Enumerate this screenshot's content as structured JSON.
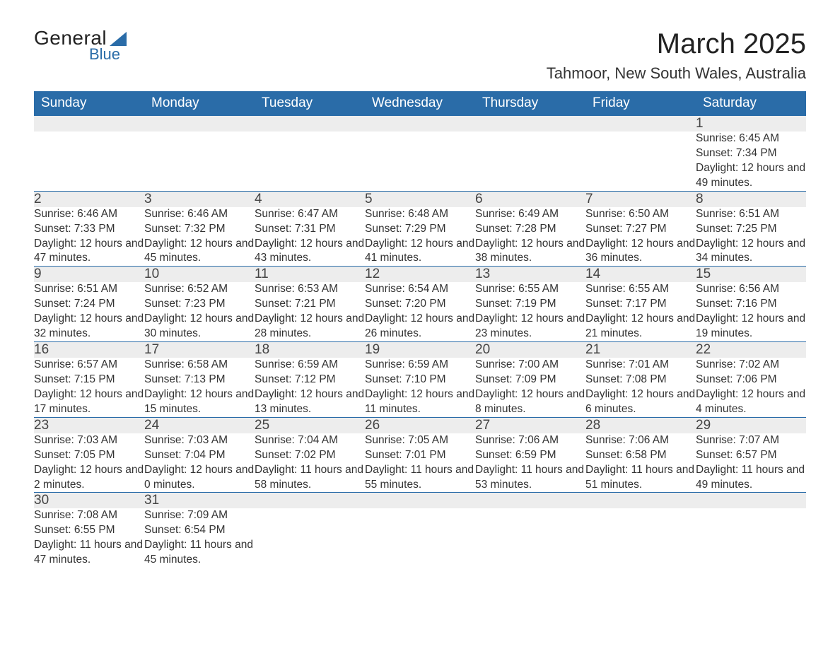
{
  "logo": {
    "text1": "General",
    "text2": "Blue"
  },
  "title": "March 2025",
  "location": "Tahmoor, New South Wales, Australia",
  "columns": [
    "Sunday",
    "Monday",
    "Tuesday",
    "Wednesday",
    "Thursday",
    "Friday",
    "Saturday"
  ],
  "colors": {
    "header_bg": "#2a6ca8",
    "header_text": "#ffffff",
    "daynum_bg": "#ededed",
    "row_border": "#2a6ca8",
    "body_text": "#333333",
    "background": "#ffffff"
  },
  "weeks": [
    [
      null,
      null,
      null,
      null,
      null,
      null,
      {
        "n": "1",
        "sr": "6:45 AM",
        "ss": "7:34 PM",
        "dl": "12 hours and 49 minutes."
      }
    ],
    [
      {
        "n": "2",
        "sr": "6:46 AM",
        "ss": "7:33 PM",
        "dl": "12 hours and 47 minutes."
      },
      {
        "n": "3",
        "sr": "6:46 AM",
        "ss": "7:32 PM",
        "dl": "12 hours and 45 minutes."
      },
      {
        "n": "4",
        "sr": "6:47 AM",
        "ss": "7:31 PM",
        "dl": "12 hours and 43 minutes."
      },
      {
        "n": "5",
        "sr": "6:48 AM",
        "ss": "7:29 PM",
        "dl": "12 hours and 41 minutes."
      },
      {
        "n": "6",
        "sr": "6:49 AM",
        "ss": "7:28 PM",
        "dl": "12 hours and 38 minutes."
      },
      {
        "n": "7",
        "sr": "6:50 AM",
        "ss": "7:27 PM",
        "dl": "12 hours and 36 minutes."
      },
      {
        "n": "8",
        "sr": "6:51 AM",
        "ss": "7:25 PM",
        "dl": "12 hours and 34 minutes."
      }
    ],
    [
      {
        "n": "9",
        "sr": "6:51 AM",
        "ss": "7:24 PM",
        "dl": "12 hours and 32 minutes."
      },
      {
        "n": "10",
        "sr": "6:52 AM",
        "ss": "7:23 PM",
        "dl": "12 hours and 30 minutes."
      },
      {
        "n": "11",
        "sr": "6:53 AM",
        "ss": "7:21 PM",
        "dl": "12 hours and 28 minutes."
      },
      {
        "n": "12",
        "sr": "6:54 AM",
        "ss": "7:20 PM",
        "dl": "12 hours and 26 minutes."
      },
      {
        "n": "13",
        "sr": "6:55 AM",
        "ss": "7:19 PM",
        "dl": "12 hours and 23 minutes."
      },
      {
        "n": "14",
        "sr": "6:55 AM",
        "ss": "7:17 PM",
        "dl": "12 hours and 21 minutes."
      },
      {
        "n": "15",
        "sr": "6:56 AM",
        "ss": "7:16 PM",
        "dl": "12 hours and 19 minutes."
      }
    ],
    [
      {
        "n": "16",
        "sr": "6:57 AM",
        "ss": "7:15 PM",
        "dl": "12 hours and 17 minutes."
      },
      {
        "n": "17",
        "sr": "6:58 AM",
        "ss": "7:13 PM",
        "dl": "12 hours and 15 minutes."
      },
      {
        "n": "18",
        "sr": "6:59 AM",
        "ss": "7:12 PM",
        "dl": "12 hours and 13 minutes."
      },
      {
        "n": "19",
        "sr": "6:59 AM",
        "ss": "7:10 PM",
        "dl": "12 hours and 11 minutes."
      },
      {
        "n": "20",
        "sr": "7:00 AM",
        "ss": "7:09 PM",
        "dl": "12 hours and 8 minutes."
      },
      {
        "n": "21",
        "sr": "7:01 AM",
        "ss": "7:08 PM",
        "dl": "12 hours and 6 minutes."
      },
      {
        "n": "22",
        "sr": "7:02 AM",
        "ss": "7:06 PM",
        "dl": "12 hours and 4 minutes."
      }
    ],
    [
      {
        "n": "23",
        "sr": "7:03 AM",
        "ss": "7:05 PM",
        "dl": "12 hours and 2 minutes."
      },
      {
        "n": "24",
        "sr": "7:03 AM",
        "ss": "7:04 PM",
        "dl": "12 hours and 0 minutes."
      },
      {
        "n": "25",
        "sr": "7:04 AM",
        "ss": "7:02 PM",
        "dl": "11 hours and 58 minutes."
      },
      {
        "n": "26",
        "sr": "7:05 AM",
        "ss": "7:01 PM",
        "dl": "11 hours and 55 minutes."
      },
      {
        "n": "27",
        "sr": "7:06 AM",
        "ss": "6:59 PM",
        "dl": "11 hours and 53 minutes."
      },
      {
        "n": "28",
        "sr": "7:06 AM",
        "ss": "6:58 PM",
        "dl": "11 hours and 51 minutes."
      },
      {
        "n": "29",
        "sr": "7:07 AM",
        "ss": "6:57 PM",
        "dl": "11 hours and 49 minutes."
      }
    ],
    [
      {
        "n": "30",
        "sr": "7:08 AM",
        "ss": "6:55 PM",
        "dl": "11 hours and 47 minutes."
      },
      {
        "n": "31",
        "sr": "7:09 AM",
        "ss": "6:54 PM",
        "dl": "11 hours and 45 minutes."
      },
      null,
      null,
      null,
      null,
      null
    ]
  ],
  "labels": {
    "sunrise": "Sunrise:",
    "sunset": "Sunset:",
    "daylight": "Daylight:"
  }
}
